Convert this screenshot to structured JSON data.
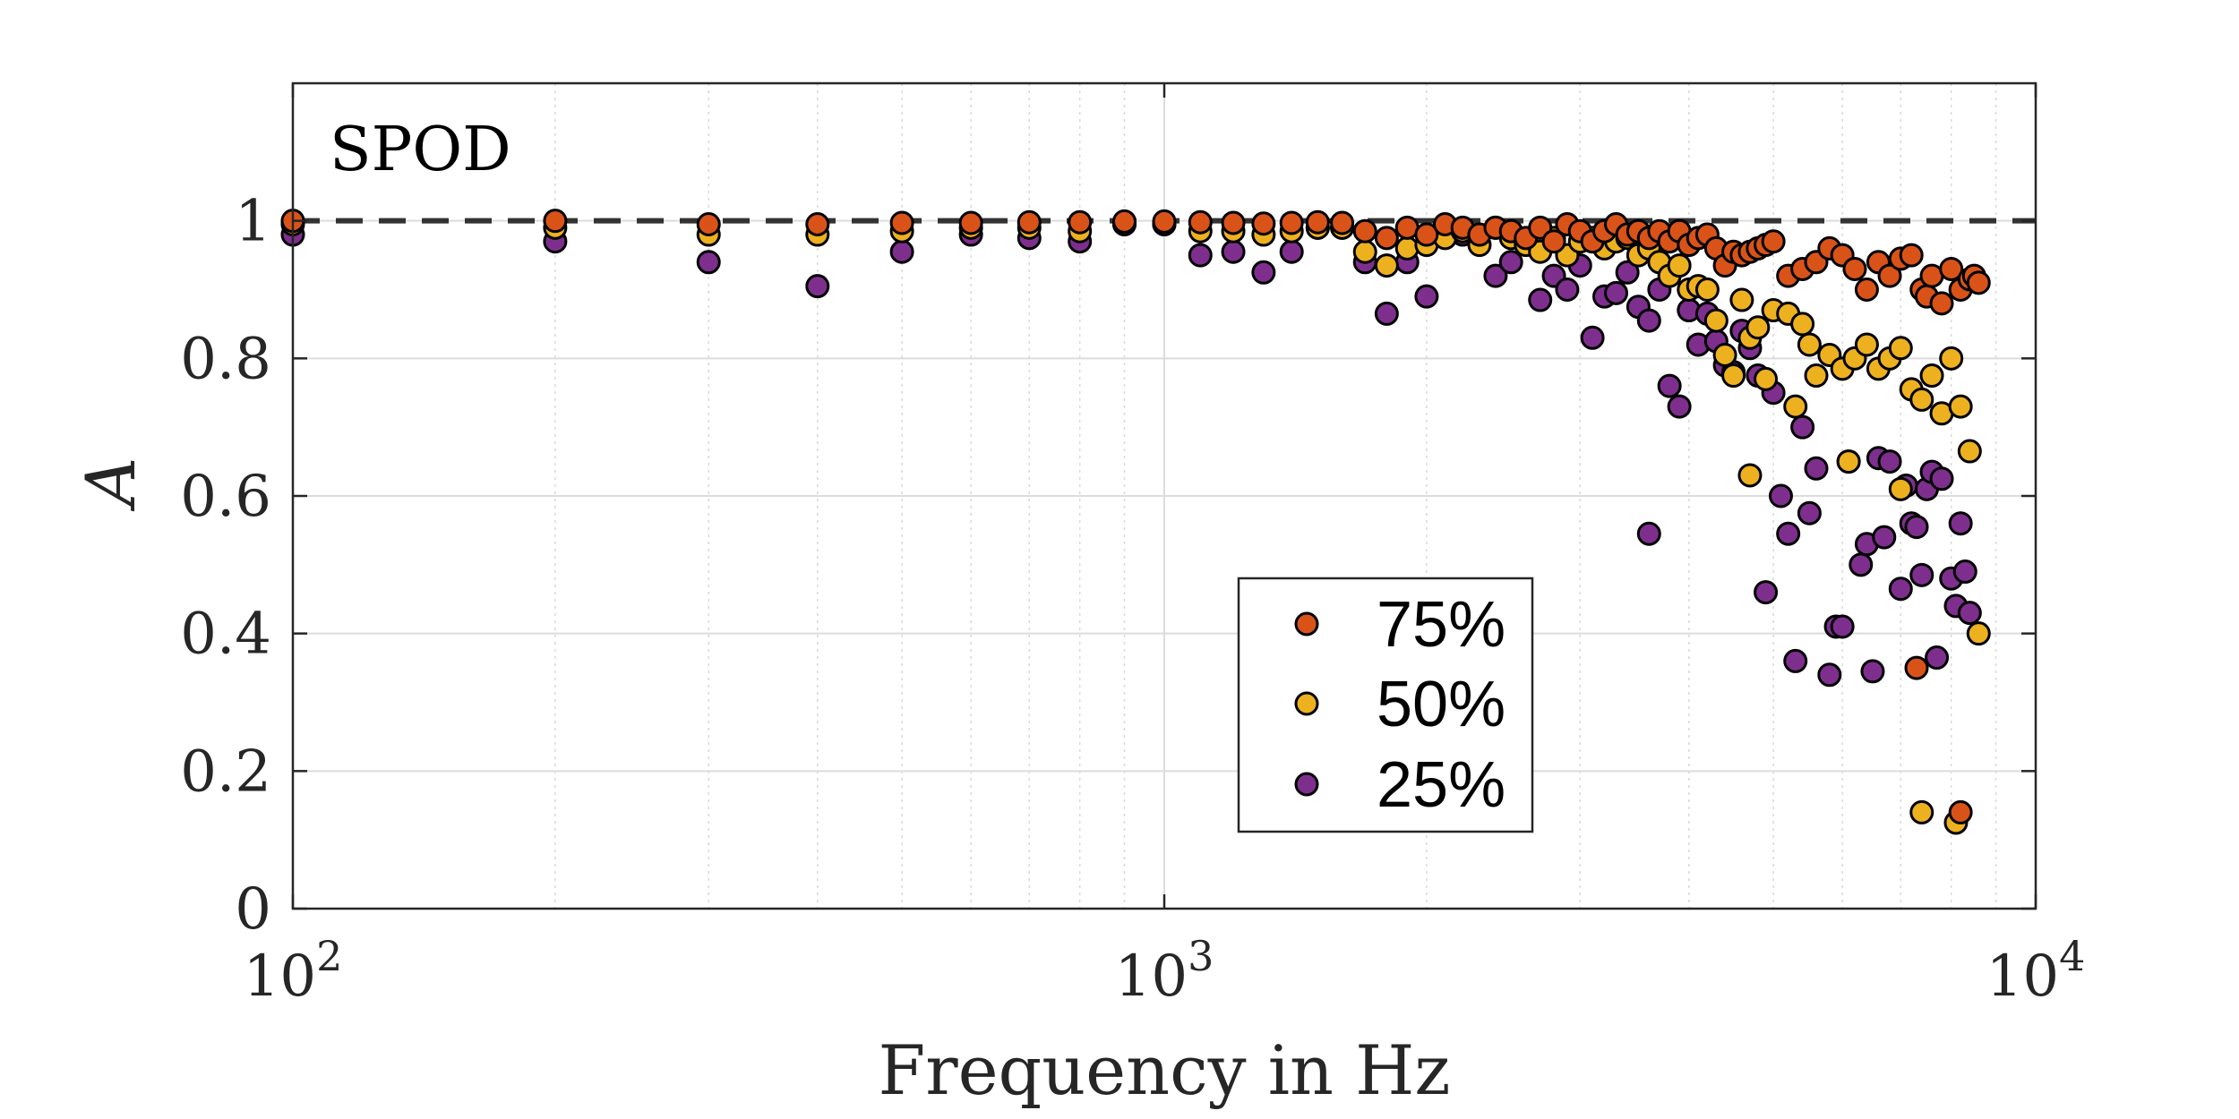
{
  "chart_data": {
    "type": "scatter",
    "title": "",
    "annotation": "SPOD",
    "xlabel": "Frequency in Hz",
    "ylabel": "A",
    "xscale": "log",
    "xlim": [
      100,
      10000
    ],
    "ylim": [
      0,
      1.2
    ],
    "xticks": [
      {
        "value": 100,
        "base": "10",
        "exp": "2"
      },
      {
        "value": 1000,
        "base": "10",
        "exp": "3"
      },
      {
        "value": 10000,
        "base": "10",
        "exp": "4"
      }
    ],
    "yticks": [
      {
        "value": 0,
        "label": "0"
      },
      {
        "value": 0.2,
        "label": "0.2"
      },
      {
        "value": 0.4,
        "label": "0.4"
      },
      {
        "value": 0.6,
        "label": "0.6"
      },
      {
        "value": 0.8,
        "label": "0.8"
      },
      {
        "value": 1,
        "label": "1"
      }
    ],
    "grid": true,
    "reference_line": {
      "y": 1,
      "style": "dashed",
      "color": "#333333"
    },
    "legend_position": "bottom-center",
    "series": [
      {
        "name": "75%",
        "color": "#D95319",
        "points": [
          [
            100,
            1.0
          ],
          [
            200,
            1.0
          ],
          [
            300,
            0.995
          ],
          [
            400,
            0.995
          ],
          [
            500,
            0.997
          ],
          [
            600,
            0.997
          ],
          [
            700,
            0.998
          ],
          [
            800,
            0.998
          ],
          [
            900,
            0.999
          ],
          [
            1000,
            0.999
          ],
          [
            1100,
            0.998
          ],
          [
            1200,
            0.997
          ],
          [
            1300,
            0.996
          ],
          [
            1400,
            0.997
          ],
          [
            1500,
            0.998
          ],
          [
            1600,
            0.997
          ],
          [
            1700,
            0.985
          ],
          [
            1800,
            0.975
          ],
          [
            1900,
            0.99
          ],
          [
            2000,
            0.98
          ],
          [
            2100,
            0.995
          ],
          [
            2200,
            0.99
          ],
          [
            2300,
            0.98
          ],
          [
            2400,
            0.99
          ],
          [
            2500,
            0.985
          ],
          [
            2600,
            0.975
          ],
          [
            2700,
            0.99
          ],
          [
            2800,
            0.97
          ],
          [
            2900,
            0.995
          ],
          [
            3000,
            0.985
          ],
          [
            3100,
            0.97
          ],
          [
            3200,
            0.985
          ],
          [
            3300,
            0.995
          ],
          [
            3400,
            0.98
          ],
          [
            3500,
            0.985
          ],
          [
            3600,
            0.975
          ],
          [
            3700,
            0.985
          ],
          [
            3800,
            0.97
          ],
          [
            3900,
            0.985
          ],
          [
            4000,
            0.965
          ],
          [
            4100,
            0.975
          ],
          [
            4200,
            0.98
          ],
          [
            4300,
            0.96
          ],
          [
            4400,
            0.935
          ],
          [
            4500,
            0.955
          ],
          [
            4600,
            0.95
          ],
          [
            4700,
            0.955
          ],
          [
            4800,
            0.96
          ],
          [
            4900,
            0.965
          ],
          [
            5000,
            0.97
          ],
          [
            5200,
            0.92
          ],
          [
            5400,
            0.93
          ],
          [
            5600,
            0.94
          ],
          [
            5800,
            0.96
          ],
          [
            6000,
            0.95
          ],
          [
            6200,
            0.93
          ],
          [
            6400,
            0.9
          ],
          [
            6600,
            0.94
          ],
          [
            6800,
            0.92
          ],
          [
            7000,
            0.945
          ],
          [
            7200,
            0.95
          ],
          [
            7400,
            0.9
          ],
          [
            7500,
            0.89
          ],
          [
            7600,
            0.92
          ],
          [
            7800,
            0.88
          ],
          [
            8000,
            0.93
          ],
          [
            8200,
            0.9
          ],
          [
            8400,
            0.915
          ],
          [
            8500,
            0.92
          ],
          [
            8600,
            0.91
          ],
          [
            7300,
            0.35
          ],
          [
            8200,
            0.14
          ]
        ]
      },
      {
        "name": "50%",
        "color": "#EDB120",
        "points": [
          [
            100,
            0.995
          ],
          [
            200,
            0.99
          ],
          [
            300,
            0.98
          ],
          [
            400,
            0.98
          ],
          [
            500,
            0.985
          ],
          [
            600,
            0.99
          ],
          [
            700,
            0.99
          ],
          [
            800,
            0.985
          ],
          [
            900,
            0.995
          ],
          [
            1000,
            0.995
          ],
          [
            1100,
            0.985
          ],
          [
            1200,
            0.985
          ],
          [
            1300,
            0.98
          ],
          [
            1400,
            0.985
          ],
          [
            1500,
            0.99
          ],
          [
            1600,
            0.99
          ],
          [
            1700,
            0.955
          ],
          [
            1800,
            0.935
          ],
          [
            1900,
            0.96
          ],
          [
            2000,
            0.965
          ],
          [
            2100,
            0.975
          ],
          [
            2200,
            0.985
          ],
          [
            2300,
            0.965
          ],
          [
            2400,
            0.99
          ],
          [
            2500,
            0.975
          ],
          [
            2600,
            0.965
          ],
          [
            2700,
            0.955
          ],
          [
            2800,
            0.975
          ],
          [
            2900,
            0.95
          ],
          [
            3000,
            0.97
          ],
          [
            3100,
            0.975
          ],
          [
            3200,
            0.96
          ],
          [
            3300,
            0.97
          ],
          [
            3400,
            0.975
          ],
          [
            3500,
            0.95
          ],
          [
            3600,
            0.96
          ],
          [
            3700,
            0.94
          ],
          [
            3800,
            0.92
          ],
          [
            3900,
            0.935
          ],
          [
            4000,
            0.9
          ],
          [
            4100,
            0.905
          ],
          [
            4200,
            0.9
          ],
          [
            4300,
            0.855
          ],
          [
            4400,
            0.805
          ],
          [
            4500,
            0.775
          ],
          [
            4600,
            0.885
          ],
          [
            4700,
            0.83
          ],
          [
            4800,
            0.845
          ],
          [
            4900,
            0.77
          ],
          [
            5000,
            0.87
          ],
          [
            5200,
            0.865
          ],
          [
            5300,
            0.73
          ],
          [
            5400,
            0.85
          ],
          [
            5500,
            0.82
          ],
          [
            5600,
            0.775
          ],
          [
            5800,
            0.805
          ],
          [
            6000,
            0.785
          ],
          [
            6200,
            0.8
          ],
          [
            6400,
            0.82
          ],
          [
            6600,
            0.785
          ],
          [
            6800,
            0.8
          ],
          [
            7000,
            0.815
          ],
          [
            7200,
            0.755
          ],
          [
            7400,
            0.74
          ],
          [
            7600,
            0.775
          ],
          [
            7800,
            0.72
          ],
          [
            8000,
            0.8
          ],
          [
            8200,
            0.73
          ],
          [
            8400,
            0.665
          ],
          [
            8600,
            0.4
          ],
          [
            4700,
            0.63
          ],
          [
            6100,
            0.65
          ],
          [
            7000,
            0.61
          ],
          [
            7400,
            0.14
          ],
          [
            8100,
            0.125
          ]
        ]
      },
      {
        "name": "25%",
        "color": "#7E2F8E",
        "points": [
          [
            100,
            0.98
          ],
          [
            200,
            0.97
          ],
          [
            300,
            0.94
          ],
          [
            400,
            0.905
          ],
          [
            500,
            0.955
          ],
          [
            600,
            0.98
          ],
          [
            700,
            0.975
          ],
          [
            800,
            0.97
          ],
          [
            900,
            0.995
          ],
          [
            1000,
            0.995
          ],
          [
            1100,
            0.95
          ],
          [
            1200,
            0.955
          ],
          [
            1300,
            0.925
          ],
          [
            1400,
            0.955
          ],
          [
            1500,
            0.99
          ],
          [
            1600,
            0.99
          ],
          [
            1700,
            0.94
          ],
          [
            1800,
            0.865
          ],
          [
            1900,
            0.94
          ],
          [
            2000,
            0.89
          ],
          [
            2200,
            0.98
          ],
          [
            2400,
            0.92
          ],
          [
            2500,
            0.94
          ],
          [
            2600,
            0.97
          ],
          [
            2700,
            0.885
          ],
          [
            2800,
            0.92
          ],
          [
            2900,
            0.9
          ],
          [
            3000,
            0.935
          ],
          [
            3100,
            0.83
          ],
          [
            3200,
            0.89
          ],
          [
            3300,
            0.895
          ],
          [
            3400,
            0.925
          ],
          [
            3500,
            0.875
          ],
          [
            3600,
            0.855
          ],
          [
            3700,
            0.9
          ],
          [
            3800,
            0.76
          ],
          [
            3900,
            0.73
          ],
          [
            4000,
            0.87
          ],
          [
            4100,
            0.82
          ],
          [
            4200,
            0.865
          ],
          [
            4300,
            0.825
          ],
          [
            4400,
            0.79
          ],
          [
            4500,
            0.78
          ],
          [
            4600,
            0.84
          ],
          [
            4700,
            0.815
          ],
          [
            4800,
            0.775
          ],
          [
            4900,
            0.46
          ],
          [
            5000,
            0.75
          ],
          [
            5100,
            0.6
          ],
          [
            5200,
            0.545
          ],
          [
            5300,
            0.36
          ],
          [
            5400,
            0.7
          ],
          [
            5500,
            0.575
          ],
          [
            5600,
            0.64
          ],
          [
            5800,
            0.34
          ],
          [
            5900,
            0.41
          ],
          [
            6000,
            0.41
          ],
          [
            6100,
            0.65
          ],
          [
            6300,
            0.5
          ],
          [
            6400,
            0.53
          ],
          [
            6500,
            0.345
          ],
          [
            6600,
            0.655
          ],
          [
            6700,
            0.54
          ],
          [
            6800,
            0.65
          ],
          [
            7000,
            0.465
          ],
          [
            7100,
            0.615
          ],
          [
            7200,
            0.56
          ],
          [
            7300,
            0.555
          ],
          [
            7400,
            0.485
          ],
          [
            7500,
            0.61
          ],
          [
            7600,
            0.635
          ],
          [
            7700,
            0.365
          ],
          [
            7800,
            0.625
          ],
          [
            8000,
            0.48
          ],
          [
            8100,
            0.44
          ],
          [
            8200,
            0.56
          ],
          [
            8300,
            0.49
          ],
          [
            8400,
            0.43
          ],
          [
            3600,
            0.545
          ]
        ]
      }
    ]
  }
}
